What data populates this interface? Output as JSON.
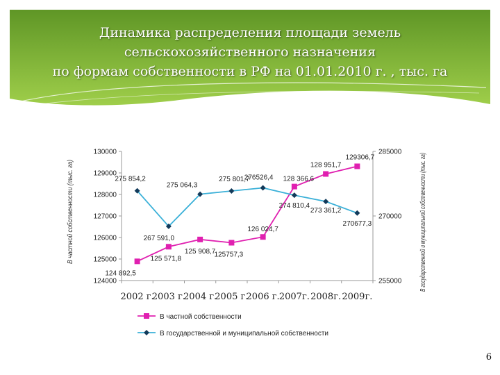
{
  "slide": {
    "title_lines": [
      "Динамика распределения площади земель",
      "сельскохозяйственного назначения",
      "по формам собственности в РФ на 01.01.2010 г. , тыс. га"
    ],
    "page_number": "6",
    "colors": {
      "banner_dark": "#5f9626",
      "banner_light": "#9fce4a"
    }
  },
  "chart_data": {
    "type": "line",
    "categories": [
      "2002 г.",
      "2003 г.",
      "2004 г.",
      "2005 г.",
      "2006 г.",
      "2007г.",
      "2008г.",
      "2009г."
    ],
    "y_left": {
      "label": "В частной собственности (тыс. га)",
      "ticks": [
        "130000",
        "129000",
        "128000",
        "127000",
        "126000",
        "125000",
        "124000"
      ],
      "ylim": [
        124000,
        130000
      ]
    },
    "y_right": {
      "label": "В государственной и муниципальной собственности (тыс. га)",
      "ticks": [
        "285000",
        "270000",
        "255000"
      ],
      "ylim": [
        255000,
        285000
      ]
    },
    "series": [
      {
        "name": "В частной собственности",
        "axis": "left",
        "color": "#e020b0",
        "marker": "square",
        "values": [
          124892.5,
          125571.8,
          125908.7,
          125757.3,
          126024.7,
          128366.6,
          128951.7,
          129306.7
        ],
        "labels": [
          "124 892,5",
          "125 571,8",
          "125 908,7",
          "125757,3",
          "126 024,7",
          "128 366,6",
          "128 951,7",
          "129306,7"
        ]
      },
      {
        "name": "В государственной и муниципальной собственности",
        "axis": "right",
        "color": "#3ab0d8",
        "marker": "diamond",
        "values": [
          275854.2,
          267591.0,
          275064.3,
          275801.7,
          276526.4,
          274810.4,
          273361.2,
          270677.3
        ],
        "labels": [
          "275 854,2",
          "267 591,0",
          "275 064,3",
          "275 801,7",
          "276526,4",
          "274 810,4",
          "273 361,2",
          "270677,3"
        ]
      }
    ],
    "grid": false,
    "legend_position": "bottom"
  }
}
